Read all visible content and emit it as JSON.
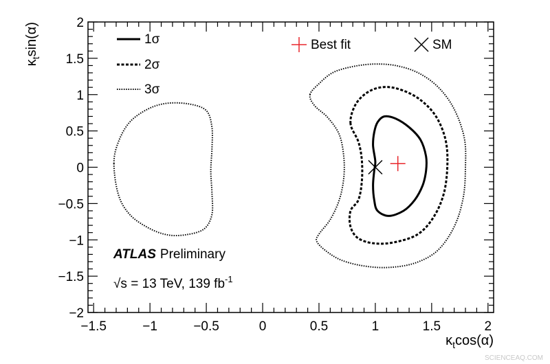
{
  "chart_data": {
    "type": "contour",
    "title": "",
    "xlabel_main": "κ",
    "xlabel_sub": "t",
    "xlabel_rest": "cos(α)",
    "ylabel_main": "κ",
    "ylabel_sub": "t",
    "ylabel_rest": "sin(α)",
    "xlim": [
      -1.55,
      2.05
    ],
    "ylim": [
      -2,
      2
    ],
    "x_ticks": [
      -1.5,
      -1,
      -0.5,
      0,
      0.5,
      1,
      1.5,
      2
    ],
    "x_tick_labels": [
      "−1.5",
      "−1",
      "−0.5",
      "0",
      "0.5",
      "1",
      "1.5",
      "2"
    ],
    "y_ticks": [
      -2,
      -1.5,
      -1,
      -0.5,
      0,
      0.5,
      1,
      1.5,
      2
    ],
    "y_tick_labels": [
      "−2",
      "−1.5",
      "−1",
      "−0.5",
      "0",
      "0.5",
      "1",
      "1.5",
      "2"
    ],
    "grid": false,
    "legend": [
      {
        "label": "1σ",
        "style": "solid"
      },
      {
        "label": "2σ",
        "style": "dashed"
      },
      {
        "label": "3σ",
        "style": "dotted"
      }
    ],
    "markers": [
      {
        "label": "Best fit",
        "symbol": "plus",
        "color": "#e8262b",
        "x": 1.2,
        "y": 0.05
      },
      {
        "label": "SM",
        "symbol": "cross",
        "color": "#000000",
        "x": 1.0,
        "y": 0.0
      }
    ],
    "contours": [
      {
        "name": "1σ",
        "style": "solid",
        "points": [
          [
            1.0,
            0.08
          ],
          [
            0.98,
            0.3
          ],
          [
            0.99,
            0.48
          ],
          [
            1.02,
            0.62
          ],
          [
            1.08,
            0.7
          ],
          [
            1.18,
            0.67
          ],
          [
            1.3,
            0.55
          ],
          [
            1.4,
            0.38
          ],
          [
            1.45,
            0.15
          ],
          [
            1.45,
            -0.05
          ],
          [
            1.42,
            -0.25
          ],
          [
            1.35,
            -0.45
          ],
          [
            1.25,
            -0.6
          ],
          [
            1.12,
            -0.67
          ],
          [
            1.02,
            -0.6
          ],
          [
            0.99,
            -0.45
          ],
          [
            0.98,
            -0.25
          ],
          [
            0.99,
            -0.05
          ]
        ]
      },
      {
        "name": "2σ",
        "style": "dashed",
        "points": [
          [
            0.78,
            0.6
          ],
          [
            0.82,
            0.85
          ],
          [
            0.92,
            1.02
          ],
          [
            1.05,
            1.1
          ],
          [
            1.2,
            1.08
          ],
          [
            1.38,
            0.95
          ],
          [
            1.53,
            0.72
          ],
          [
            1.62,
            0.4
          ],
          [
            1.64,
            0.05
          ],
          [
            1.61,
            -0.35
          ],
          [
            1.52,
            -0.68
          ],
          [
            1.38,
            -0.92
          ],
          [
            1.18,
            -1.03
          ],
          [
            1.0,
            -1.05
          ],
          [
            0.85,
            -0.98
          ],
          [
            0.78,
            -0.82
          ],
          [
            0.78,
            -0.6
          ],
          [
            0.85,
            -0.45
          ],
          [
            0.88,
            -0.2
          ],
          [
            0.88,
            0.1
          ],
          [
            0.85,
            0.35
          ]
        ]
      },
      {
        "name": "3σ (right)",
        "style": "dotted",
        "points": [
          [
            0.42,
            1.0
          ],
          [
            0.5,
            1.15
          ],
          [
            0.62,
            1.3
          ],
          [
            0.78,
            1.38
          ],
          [
            0.98,
            1.42
          ],
          [
            1.18,
            1.4
          ],
          [
            1.38,
            1.3
          ],
          [
            1.56,
            1.1
          ],
          [
            1.7,
            0.8
          ],
          [
            1.79,
            0.4
          ],
          [
            1.8,
            0.0
          ],
          [
            1.78,
            -0.42
          ],
          [
            1.7,
            -0.82
          ],
          [
            1.55,
            -1.15
          ],
          [
            1.35,
            -1.32
          ],
          [
            1.12,
            -1.38
          ],
          [
            0.9,
            -1.36
          ],
          [
            0.7,
            -1.28
          ],
          [
            0.56,
            -1.15
          ],
          [
            0.48,
            -1.02
          ],
          [
            0.5,
            -0.92
          ],
          [
            0.6,
            -0.72
          ],
          [
            0.68,
            -0.45
          ],
          [
            0.72,
            -0.15
          ],
          [
            0.72,
            0.15
          ],
          [
            0.68,
            0.45
          ],
          [
            0.58,
            0.68
          ],
          [
            0.46,
            0.85
          ]
        ]
      },
      {
        "name": "3σ (left)",
        "style": "dotted",
        "points": [
          [
            -1.32,
            0.05
          ],
          [
            -1.28,
            0.35
          ],
          [
            -1.18,
            0.62
          ],
          [
            -1.02,
            0.8
          ],
          [
            -0.85,
            0.88
          ],
          [
            -0.65,
            0.87
          ],
          [
            -0.5,
            0.78
          ],
          [
            -0.45,
            0.55
          ],
          [
            -0.45,
            0.25
          ],
          [
            -0.46,
            -0.05
          ],
          [
            -0.45,
            -0.35
          ],
          [
            -0.45,
            -0.65
          ],
          [
            -0.52,
            -0.85
          ],
          [
            -0.68,
            -0.93
          ],
          [
            -0.85,
            -0.93
          ],
          [
            -1.02,
            -0.83
          ],
          [
            -1.18,
            -0.65
          ],
          [
            -1.28,
            -0.38
          ]
        ]
      }
    ]
  },
  "annotations": {
    "experiment": "ATLAS",
    "status": "Preliminary",
    "energy_pre": "√s = 13 TeV, 139 fb",
    "energy_sup": "-1"
  },
  "watermark": "SCIENCEAQ.COM"
}
